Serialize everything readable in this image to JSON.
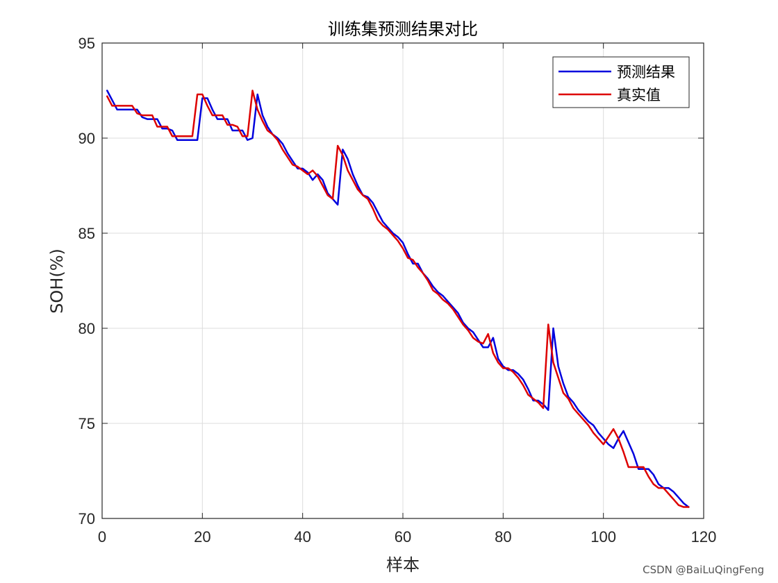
{
  "chart_data": {
    "type": "line",
    "title": "训练集预测结果对比",
    "xlabel": "样本",
    "ylabel": "SOH(%)",
    "xlim": [
      0,
      120
    ],
    "ylim": [
      70,
      95
    ],
    "xticks": [
      0,
      20,
      40,
      60,
      80,
      100,
      120
    ],
    "yticks": [
      70,
      75,
      80,
      85,
      90,
      95
    ],
    "grid": true,
    "legend_position": "top-right",
    "series": [
      {
        "name": "预测结果",
        "color": "#0000dd",
        "x": [
          1,
          2,
          3,
          4,
          5,
          6,
          7,
          8,
          9,
          10,
          11,
          12,
          13,
          14,
          15,
          16,
          17,
          18,
          19,
          20,
          21,
          22,
          23,
          24,
          25,
          26,
          27,
          28,
          29,
          30,
          31,
          32,
          33,
          34,
          35,
          36,
          37,
          38,
          39,
          40,
          41,
          42,
          43,
          44,
          45,
          46,
          47,
          48,
          49,
          50,
          51,
          52,
          53,
          54,
          55,
          56,
          57,
          58,
          59,
          60,
          61,
          62,
          63,
          64,
          65,
          66,
          67,
          68,
          69,
          70,
          71,
          72,
          73,
          74,
          75,
          76,
          77,
          78,
          79,
          80,
          81,
          82,
          83,
          84,
          85,
          86,
          87,
          88,
          89,
          90,
          91,
          92,
          93,
          94,
          95,
          96,
          97,
          98,
          99,
          100,
          101,
          102,
          103,
          104,
          105,
          106,
          107,
          108,
          109,
          110,
          111,
          112,
          113,
          114,
          115,
          116,
          117
        ],
        "y": [
          92.5,
          92.0,
          91.5,
          91.5,
          91.5,
          91.5,
          91.5,
          91.1,
          91.0,
          91.0,
          91.0,
          90.5,
          90.5,
          90.4,
          89.9,
          89.9,
          89.9,
          89.9,
          89.9,
          92.1,
          92.1,
          91.5,
          91.0,
          91.0,
          91.0,
          90.4,
          90.4,
          90.4,
          89.9,
          90.0,
          92.3,
          91.2,
          90.6,
          90.2,
          90.0,
          89.7,
          89.2,
          88.8,
          88.4,
          88.4,
          88.2,
          87.8,
          88.1,
          87.8,
          87.1,
          86.8,
          86.5,
          89.4,
          88.9,
          88.1,
          87.5,
          87.0,
          86.9,
          86.6,
          86.1,
          85.6,
          85.3,
          85.0,
          84.8,
          84.5,
          83.9,
          83.4,
          83.4,
          82.9,
          82.6,
          82.2,
          81.9,
          81.7,
          81.4,
          81.1,
          80.8,
          80.3,
          80.0,
          79.8,
          79.4,
          79.0,
          79.0,
          79.5,
          78.4,
          78.0,
          77.8,
          77.8,
          77.6,
          77.3,
          76.8,
          76.2,
          76.2,
          76.0,
          75.7,
          80.0,
          78.0,
          77.1,
          76.4,
          76.1,
          75.7,
          75.4,
          75.1,
          74.9,
          74.5,
          74.2,
          73.9,
          73.7,
          74.2,
          74.6,
          74.0,
          73.4,
          72.6,
          72.6,
          72.6,
          72.3,
          71.8,
          71.6,
          71.6,
          71.4,
          71.1,
          70.8,
          70.6
        ]
      },
      {
        "name": "真实值",
        "color": "#dd0000",
        "x": [
          1,
          2,
          3,
          4,
          5,
          6,
          7,
          8,
          9,
          10,
          11,
          12,
          13,
          14,
          15,
          16,
          17,
          18,
          19,
          20,
          21,
          22,
          23,
          24,
          25,
          26,
          27,
          28,
          29,
          30,
          31,
          32,
          33,
          34,
          35,
          36,
          37,
          38,
          39,
          40,
          41,
          42,
          43,
          44,
          45,
          46,
          47,
          48,
          49,
          50,
          51,
          52,
          53,
          54,
          55,
          56,
          57,
          58,
          59,
          60,
          61,
          62,
          63,
          64,
          65,
          66,
          67,
          68,
          69,
          70,
          71,
          72,
          73,
          74,
          75,
          76,
          77,
          78,
          79,
          80,
          81,
          82,
          83,
          84,
          85,
          86,
          87,
          88,
          89,
          90,
          91,
          92,
          93,
          94,
          95,
          96,
          97,
          98,
          99,
          100,
          101,
          102,
          103,
          104,
          105,
          106,
          107,
          108,
          109,
          110,
          111,
          112,
          113,
          114,
          115,
          116,
          117
        ],
        "y": [
          92.2,
          91.7,
          91.7,
          91.7,
          91.7,
          91.7,
          91.3,
          91.2,
          91.2,
          91.2,
          90.6,
          90.6,
          90.6,
          90.1,
          90.1,
          90.1,
          90.1,
          90.1,
          92.3,
          92.3,
          91.7,
          91.2,
          91.2,
          91.2,
          90.7,
          90.7,
          90.6,
          90.1,
          90.1,
          92.5,
          91.5,
          90.9,
          90.4,
          90.2,
          89.9,
          89.4,
          89.0,
          88.6,
          88.5,
          88.3,
          88.1,
          88.3,
          88.0,
          87.5,
          87.0,
          86.8,
          89.6,
          89.1,
          88.3,
          87.8,
          87.3,
          87.0,
          86.8,
          86.3,
          85.7,
          85.4,
          85.2,
          84.9,
          84.6,
          84.2,
          83.7,
          83.6,
          83.2,
          82.9,
          82.5,
          82.0,
          81.8,
          81.5,
          81.3,
          81.0,
          80.6,
          80.2,
          79.9,
          79.5,
          79.3,
          79.2,
          79.7,
          78.7,
          78.2,
          77.9,
          77.9,
          77.7,
          77.4,
          77.0,
          76.5,
          76.3,
          76.1,
          75.8,
          80.2,
          78.2,
          77.4,
          76.6,
          76.3,
          75.8,
          75.5,
          75.2,
          74.9,
          74.5,
          74.2,
          73.9,
          74.3,
          74.7,
          74.2,
          73.5,
          72.7,
          72.7,
          72.7,
          72.7,
          72.2,
          71.8,
          71.6,
          71.6,
          71.3,
          71.0,
          70.7,
          70.6,
          70.6
        ]
      }
    ]
  },
  "watermark": "CSDN @BaiLuQingFeng"
}
